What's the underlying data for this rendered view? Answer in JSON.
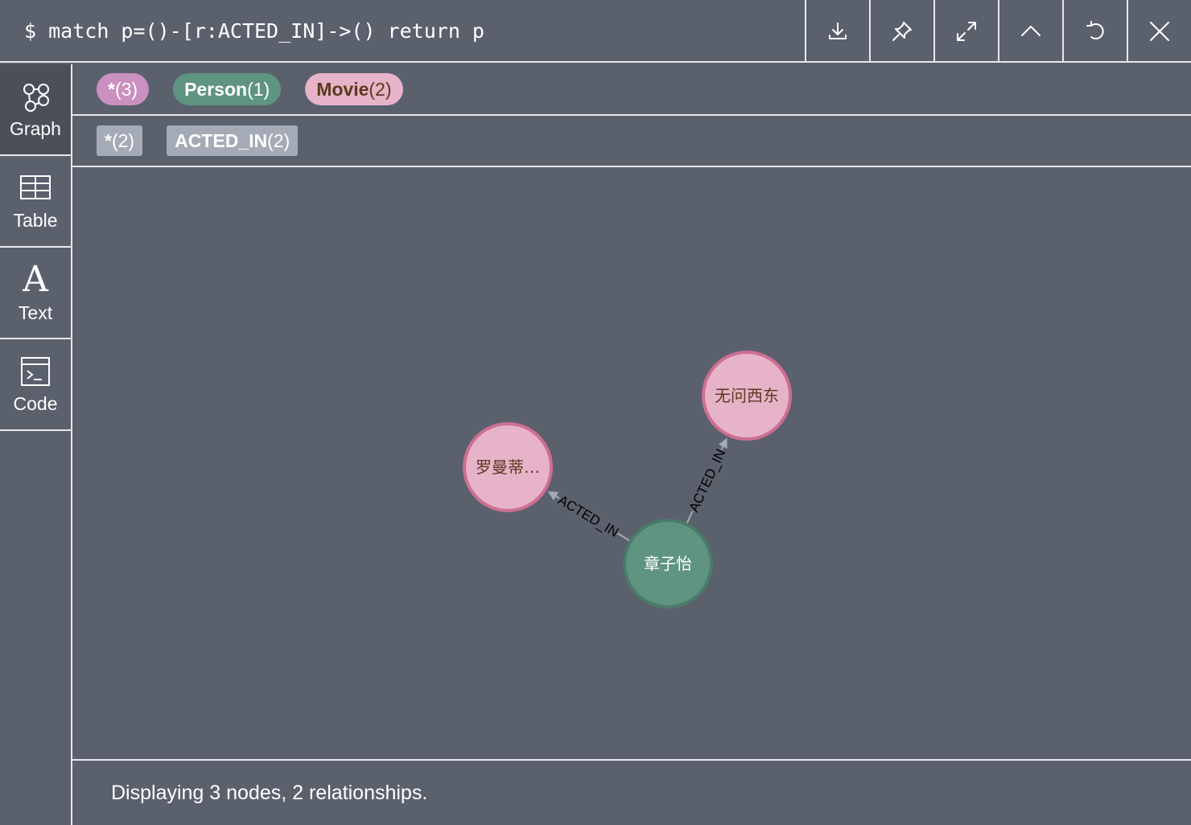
{
  "query": {
    "prompt": "$",
    "text": "match p=()-[r:ACTED_IN]->() return p"
  },
  "toolbar": [
    "download-icon",
    "pin-icon",
    "expand-icon",
    "collapse-icon",
    "rerun-icon",
    "close-icon"
  ],
  "sidenav": {
    "items": [
      {
        "label": "Graph",
        "icon": "graph-icon",
        "active": true
      },
      {
        "label": "Table",
        "icon": "table-icon",
        "active": false
      },
      {
        "label": "Text",
        "icon": "text-icon",
        "active": false
      },
      {
        "label": "Code",
        "icon": "code-icon",
        "active": false
      }
    ]
  },
  "labels": {
    "all": {
      "name": "*",
      "count": "(3)"
    },
    "person": {
      "name": "Person",
      "count": "(1)"
    },
    "movie": {
      "name": "Movie",
      "count": "(2)"
    }
  },
  "relationships": {
    "all": {
      "name": "*",
      "count": "(2)"
    },
    "acted_in": {
      "name": "ACTED_IN",
      "count": "(2)"
    }
  },
  "graph": {
    "nodes": [
      {
        "id": "n1",
        "caption": "章子怡",
        "label": "Person",
        "color": "#5f9480",
        "border": "#4b7a69",
        "text_color": "#ffffff"
      },
      {
        "id": "n2",
        "caption": "罗曼蒂…",
        "label": "Movie",
        "color": "#e6b3c9",
        "border": "#cc6f92",
        "text_color": "#5a3a1e"
      },
      {
        "id": "n3",
        "caption": "无问西东",
        "label": "Movie",
        "color": "#e6b3c9",
        "border": "#cc6f92",
        "text_color": "#5a3a1e"
      }
    ],
    "edges": [
      {
        "from": "n1",
        "to": "n2",
        "type": "ACTED_IN"
      },
      {
        "from": "n1",
        "to": "n3",
        "type": "ACTED_IN"
      }
    ]
  },
  "status": "Displaying 3 nodes, 2 relationships.",
  "colors": {
    "background": "#5b606d",
    "person": "#5f9480",
    "movie": "#e6b3c9",
    "all_label": "#c990c0",
    "rel_tag": "#a5abb6",
    "edge": "#a5abb6"
  }
}
